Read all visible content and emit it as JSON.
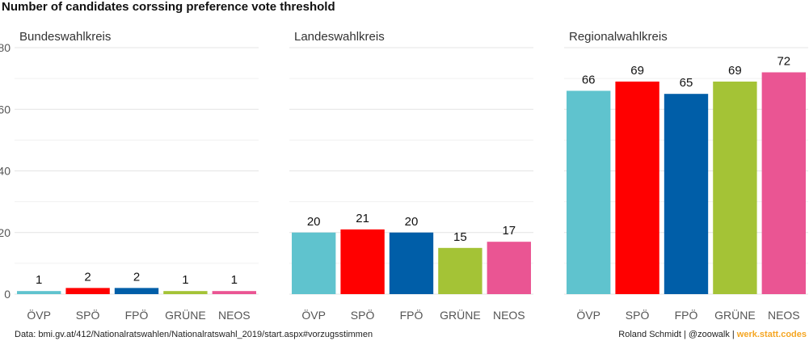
{
  "chart_data": {
    "type": "bar",
    "title": "Number of candidates corssing preference vote threshold",
    "categories": [
      "ÖVP",
      "SPÖ",
      "FPÖ",
      "GRÜNE",
      "NEOS"
    ],
    "colors": [
      "#5fc3ce",
      "#ff0000",
      "#005ea8",
      "#a4c336",
      "#ea5593"
    ],
    "ylim": [
      0,
      80
    ],
    "yticks": [
      0,
      20,
      40,
      60,
      80
    ],
    "grid": true,
    "facets": [
      {
        "name": "Bundeswahlkreis",
        "values": [
          1,
          2,
          2,
          1,
          1
        ]
      },
      {
        "name": "Landeswahlkreis",
        "values": [
          20,
          21,
          20,
          15,
          17
        ]
      },
      {
        "name": "Regionalwahlkreis",
        "values": [
          66,
          69,
          65,
          69,
          72
        ]
      }
    ],
    "caption_left": "Data: bmi.gv.at/412/Nationalratswahlen/Nationalratswahl_2019/start.aspx#vorzugsstimmen",
    "caption_right_author": "Roland Schmidt | @zoowalk | ",
    "caption_right_brand": "werk.statt.codes",
    "brand_color": "#f5a623"
  }
}
